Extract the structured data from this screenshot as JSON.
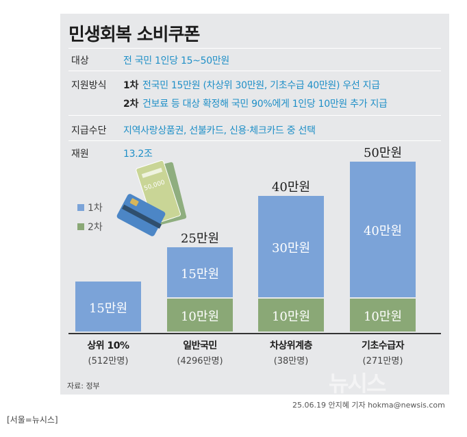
{
  "title": "민생회복 소비쿠폰",
  "info": {
    "target_label": "대상",
    "target_text": "전 국민 1인당 15~50만원",
    "method_label": "지원방식",
    "round1": "1차",
    "round1_text": "전국민 15만원 (차상위 30만원, 기초수급 40만원) 우선 지급",
    "round2": "2차",
    "round2_text": "건보료 등 대상 확정해 국민 90%에게 1인당 10만원 추가 지급",
    "means_label": "지급수단",
    "means_text": "지역사랑상품권, 선불카드, 신용·체크카드 중 선택",
    "fund_label": "재원",
    "fund_text": "13.2조"
  },
  "illustration": {
    "bill_text": "50,000"
  },
  "chart_data": {
    "type": "bar",
    "stacked": true,
    "unit": "만원",
    "categories": [
      "상위 10%",
      "일반국민",
      "차상위계층",
      "기초수급자"
    ],
    "populations": [
      "(512만명)",
      "(4296만명)",
      "(38만명)",
      "(271만명)"
    ],
    "series": [
      {
        "name": "1차",
        "color": "#7ba3d8",
        "values": [
          15,
          15,
          30,
          40
        ],
        "labels": [
          "15만원",
          "15만원",
          "30만원",
          "40만원"
        ]
      },
      {
        "name": "2차",
        "color": "#8aa876",
        "values": [
          0,
          10,
          10,
          10
        ],
        "labels": [
          "",
          "10만원",
          "10만원",
          "10만원"
        ]
      }
    ],
    "totals": [
      "",
      "25만원",
      "40만원",
      "50만원"
    ],
    "ylim": [
      0,
      50
    ],
    "legend": "left"
  },
  "source": "자료: 정부",
  "watermark": "뉴시스",
  "credit": "25.06.19 안지혜 기자 hokma@newsis.com",
  "bottom_note": "[서울=뉴시스]"
}
